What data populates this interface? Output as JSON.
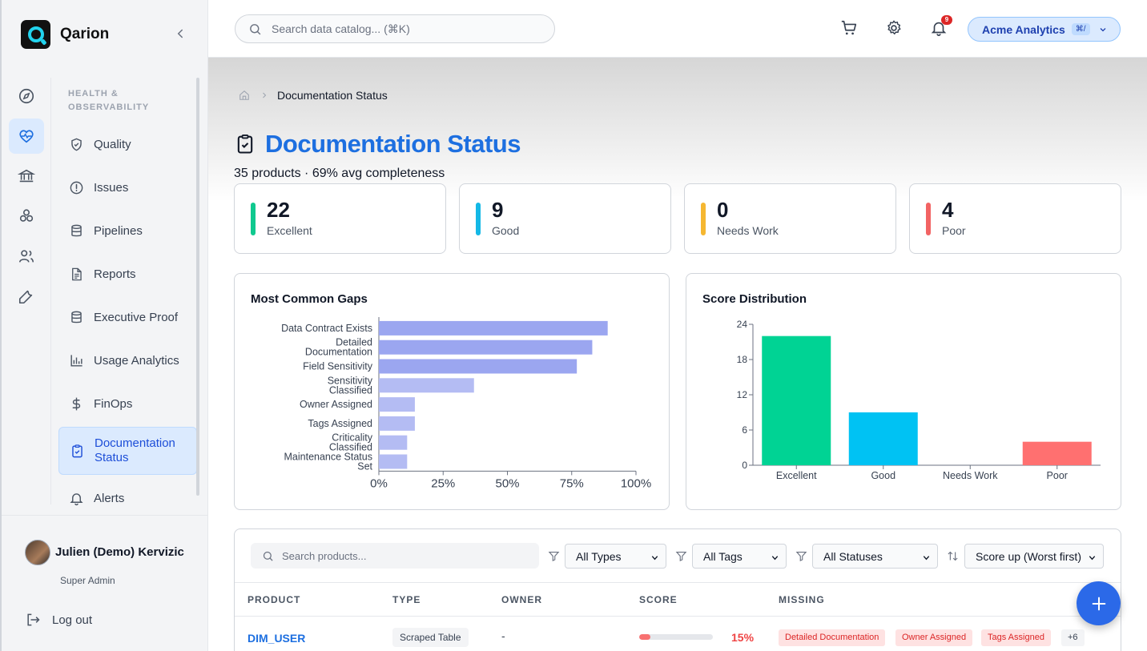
{
  "app": {
    "name": "Qarion"
  },
  "sidebar": {
    "rail": [
      {
        "name": "compass-icon",
        "active": false
      },
      {
        "name": "heart-pulse-icon",
        "active": true
      },
      {
        "name": "bank-icon",
        "active": false
      },
      {
        "name": "boxes-icon",
        "active": false
      },
      {
        "name": "users-icon",
        "active": false
      },
      {
        "name": "wrench-icon",
        "active": false
      }
    ],
    "section": "HEALTH & OBSERVABILITY",
    "items": [
      {
        "label": "Quality",
        "icon": "shield-check-icon"
      },
      {
        "label": "Issues",
        "icon": "alert-circle-icon"
      },
      {
        "label": "Pipelines",
        "icon": "database-icon"
      },
      {
        "label": "Reports",
        "icon": "file-text-icon"
      },
      {
        "label": "Executive Proof",
        "icon": "database-icon"
      },
      {
        "label": "Usage Analytics",
        "icon": "bar-chart-icon"
      },
      {
        "label": "FinOps",
        "icon": "dollar-icon"
      },
      {
        "label": "Documentation Status",
        "icon": "clipboard-check-icon",
        "active": true
      },
      {
        "label": "Alerts",
        "icon": "bell-icon"
      }
    ],
    "user": {
      "name": "Julien (Demo) Kervizic",
      "role": "Super Admin"
    },
    "logout": "Log out"
  },
  "topbar": {
    "search_placeholder": "Search data catalog... (⌘K)",
    "notification_count": "9",
    "org": "Acme Analytics",
    "org_shortcut": "⌘/"
  },
  "breadcrumb": {
    "current": "Documentation Status"
  },
  "page": {
    "title": "Documentation Status",
    "subtitle": "35 products · 69% avg completeness"
  },
  "stats": [
    {
      "value": "22",
      "label": "Excellent",
      "color": "#10c98f"
    },
    {
      "value": "9",
      "label": "Good",
      "color": "#14b8e6"
    },
    {
      "value": "0",
      "label": "Needs Work",
      "color": "#f5b731"
    },
    {
      "value": "4",
      "label": "Poor",
      "color": "#f26363"
    }
  ],
  "chart_data": [
    {
      "type": "bar",
      "orientation": "horizontal",
      "title": "Most Common Gaps",
      "categories": [
        "Data Contract Exists",
        "Detailed Documentation",
        "Field Sensitivity",
        "Sensitivity Classified",
        "Owner Assigned",
        "Tags Assigned",
        "Criticality Classified",
        "Maintenance Status Set"
      ],
      "values": [
        89,
        83,
        77,
        37,
        14,
        14,
        11,
        11
      ],
      "xlim": [
        0,
        100
      ],
      "x_ticks": [
        "0%",
        "25%",
        "50%",
        "75%",
        "100%"
      ],
      "color": "#9ba6f0"
    },
    {
      "type": "bar",
      "title": "Score Distribution",
      "categories": [
        "Excellent",
        "Good",
        "Needs Work",
        "Poor"
      ],
      "values": [
        22,
        9,
        0,
        4
      ],
      "colors": [
        "#00d394",
        "#00c2f3",
        "#f5b731",
        "#ff7070"
      ],
      "ylim": [
        0,
        24
      ],
      "y_ticks": [
        "0",
        "6",
        "12",
        "18",
        "24"
      ]
    }
  ],
  "table": {
    "search_placeholder": "Search products...",
    "filters": [
      "All Types",
      "All Tags",
      "All Statuses"
    ],
    "sort": "Score up (Worst first)",
    "columns": [
      "PRODUCT",
      "TYPE",
      "OWNER",
      "SCORE",
      "MISSING"
    ],
    "rows": [
      {
        "product": "DIM_USER",
        "type": "Scraped Table",
        "owner": "-",
        "score": 15,
        "score_label": "15%",
        "missing": [
          "Detailed Documentation",
          "Owner Assigned",
          "Tags Assigned"
        ],
        "more": "+6"
      }
    ]
  }
}
